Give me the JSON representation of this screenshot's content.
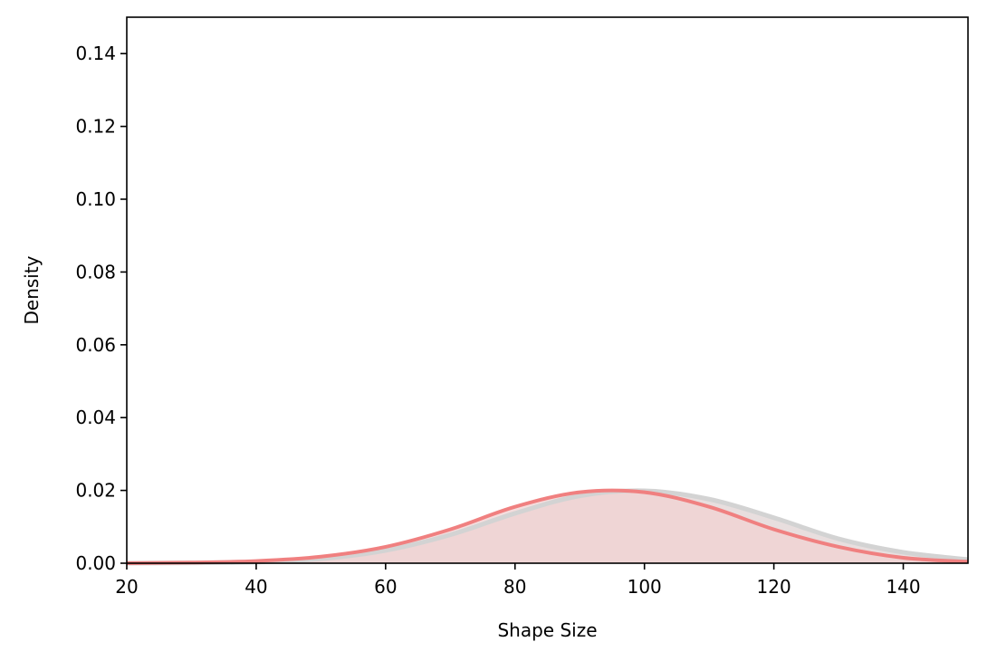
{
  "chart_data": {
    "type": "area",
    "title": "",
    "xlabel": "Shape Size",
    "ylabel": "Density",
    "xlim": [
      20,
      150
    ],
    "ylim": [
      0,
      0.15
    ],
    "x_ticks": [
      20,
      40,
      60,
      80,
      100,
      120,
      140
    ],
    "y_ticks": [
      0.0,
      0.02,
      0.04,
      0.06,
      0.08,
      0.1,
      0.12,
      0.14
    ],
    "x_tick_labels": [
      "20",
      "40",
      "60",
      "80",
      "100",
      "120",
      "140"
    ],
    "y_tick_labels": [
      "0.00",
      "0.02",
      "0.04",
      "0.06",
      "0.08",
      "0.10",
      "0.12",
      "0.14"
    ],
    "grid": false,
    "legend": "none",
    "series": [
      {
        "color": "#d3d3d3",
        "fill": "#e6dada",
        "x": [
          20,
          30,
          40,
          50,
          60,
          70,
          80,
          90,
          100,
          110,
          120,
          130,
          140,
          150
        ],
        "y": [
          0.0,
          0.0001,
          0.0003,
          0.0012,
          0.0035,
          0.0078,
          0.0137,
          0.0185,
          0.0199,
          0.0176,
          0.0125,
          0.0067,
          0.003,
          0.001
        ]
      },
      {
        "color": "#f08080",
        "fill": "#f2d2d2",
        "x": [
          20,
          30,
          40,
          50,
          60,
          70,
          80,
          90,
          100,
          110,
          120,
          130,
          140,
          150
        ],
        "y": [
          0.0,
          0.0002,
          0.0006,
          0.0018,
          0.0045,
          0.0093,
          0.0155,
          0.0195,
          0.0195,
          0.0155,
          0.0093,
          0.0045,
          0.0015,
          0.0004
        ]
      }
    ]
  }
}
